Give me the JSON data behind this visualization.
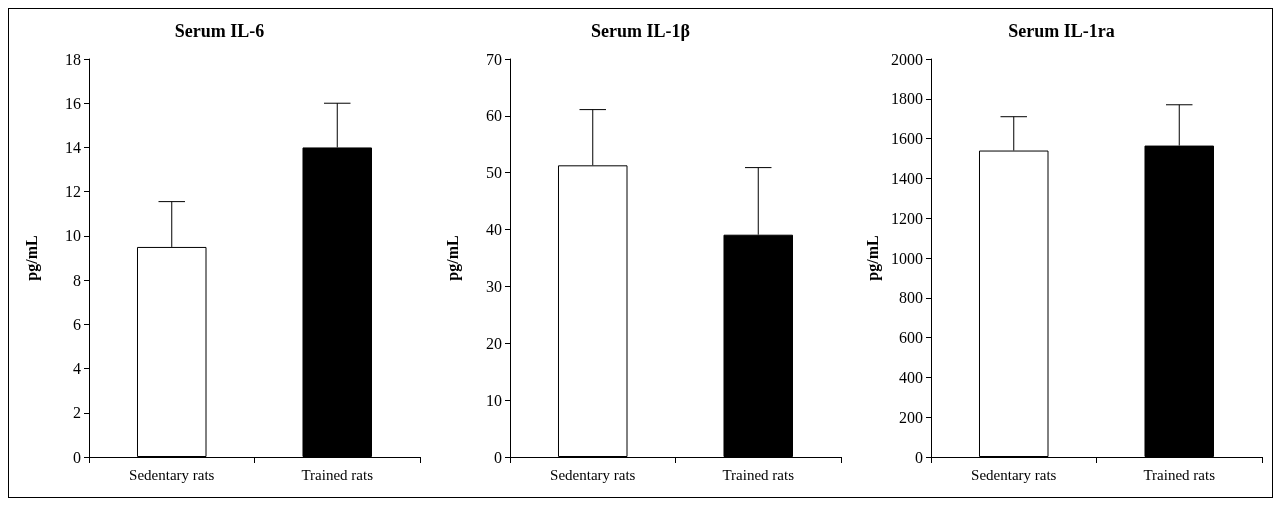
{
  "chart_data": [
    {
      "type": "bar",
      "title": "Serum IL-6",
      "ylabel": "pg/mL",
      "categories": [
        "Sedentary rats",
        "Trained rats"
      ],
      "values": [
        9.5,
        14
      ],
      "colors": [
        "#ffffff",
        "#000000"
      ],
      "errors": [
        [
          9.5,
          11.55
        ],
        [
          14,
          16
        ]
      ],
      "ylim": [
        0,
        18
      ],
      "yticks": [
        0,
        2,
        4,
        6,
        8,
        10,
        12,
        14,
        16,
        18
      ]
    },
    {
      "type": "bar",
      "title": "Serum IL-1β",
      "ylabel": "pg/mL",
      "categories": [
        "Sedentary rats",
        "Trained rats"
      ],
      "values": [
        51.3,
        39.1
      ],
      "colors": [
        "#ffffff",
        "#000000"
      ],
      "errors": [
        [
          51.3,
          61.1
        ],
        [
          39.1,
          50.9
        ]
      ],
      "ylim": [
        0,
        70
      ],
      "yticks": [
        0,
        10,
        20,
        30,
        40,
        50,
        60,
        70
      ]
    },
    {
      "type": "bar",
      "title": "Serum IL-1ra",
      "ylabel": "pg/mL",
      "categories": [
        "Sedentary rats",
        "Trained rats"
      ],
      "values": [
        1540,
        1565
      ],
      "colors": [
        "#ffffff",
        "#000000"
      ],
      "errors": [
        [
          1540,
          1710
        ],
        [
          1565,
          1770
        ]
      ],
      "ylim": [
        0,
        2000
      ],
      "yticks": [
        0,
        200,
        400,
        600,
        800,
        1000,
        1200,
        1400,
        1600,
        1800,
        2000
      ]
    }
  ]
}
